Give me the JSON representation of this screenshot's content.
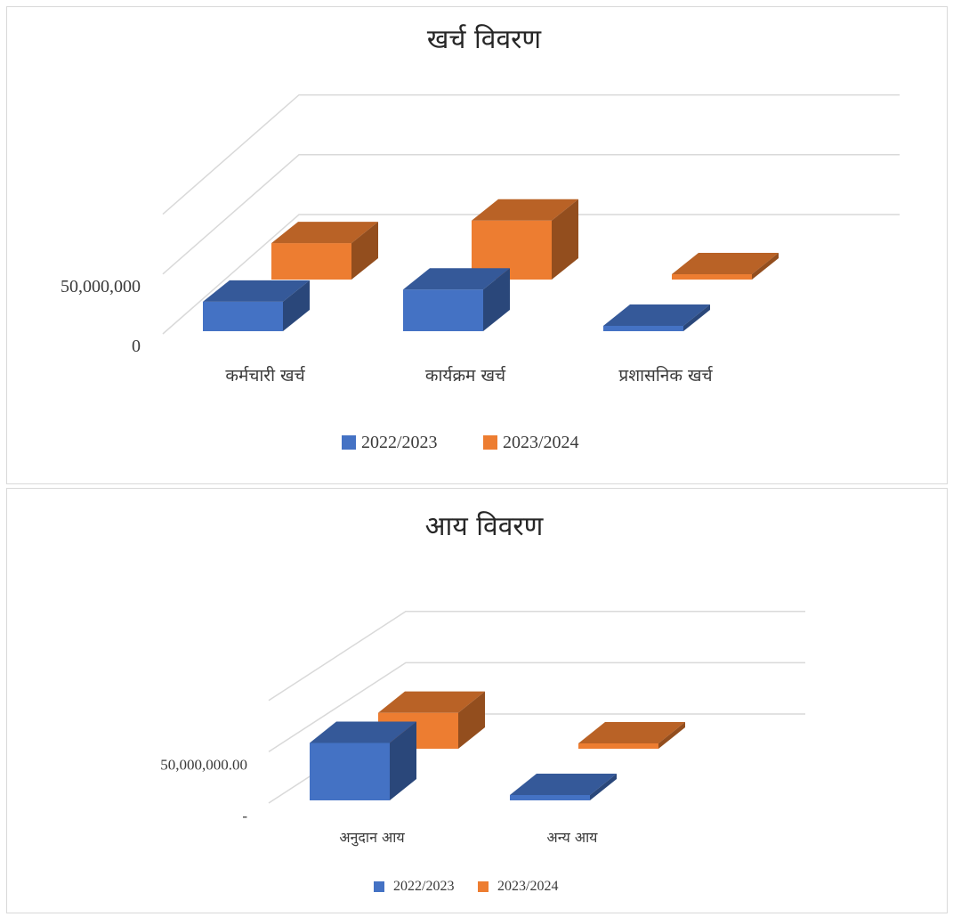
{
  "chart_data": [
    {
      "type": "bar",
      "title": "खर्च विवरण",
      "categories": [
        "कर्मचारी खर्च",
        "कार्यक्रम खर्च",
        "प्रशासनिक खर्च"
      ],
      "series": [
        {
          "name": "2022/2023",
          "values": [
            17000000,
            24000000,
            2000000
          ],
          "color": "#4472C4"
        },
        {
          "name": "2023/2024",
          "values": [
            21000000,
            34000000,
            3000000
          ],
          "color": "#ED7D31"
        }
      ],
      "yticks": [
        "0",
        "50,000,000"
      ],
      "ylim": [
        0,
        100000000
      ],
      "grid": true,
      "legend": "bottom"
    },
    {
      "type": "bar",
      "title": "आय विवरण",
      "categories": [
        "अनुदान आय",
        "अन्य आय"
      ],
      "series": [
        {
          "name": "2022/2023",
          "values": [
            56000000,
            3000000
          ],
          "color": "#4472C4"
        },
        {
          "name": "2023/2024",
          "values": [
            35000000,
            3000000
          ],
          "color": "#ED7D31"
        }
      ],
      "yticks": [
        "-",
        "50,000,000.00"
      ],
      "ylim": [
        0,
        100000000
      ],
      "grid": true,
      "legend": "bottom"
    }
  ]
}
